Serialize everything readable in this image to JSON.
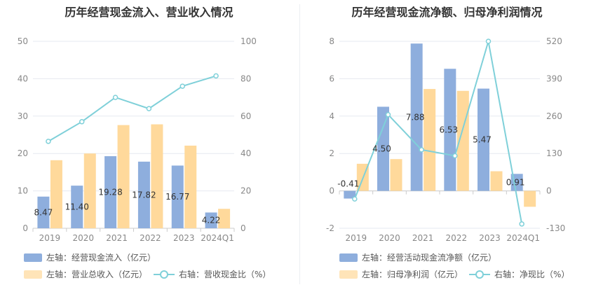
{
  "colors": {
    "bar1": "#8eaedd",
    "bar2": "#ffd99b",
    "line": "#7fd0d9",
    "grid": "#e6e9f0",
    "axis": "#cccccc"
  },
  "left": {
    "title": "历年经营现金流入、营业收入情况",
    "legend": {
      "bar1": "左轴：经营现金流入（亿元）",
      "bar2": "左轴：营业总收入（亿元）",
      "line": "右轴：营收现金比（%）"
    }
  },
  "right": {
    "title": "历年经营现金流净额、归母净利润情况",
    "legend": {
      "bar1": "左轴：经营活动现金流净额（亿元）",
      "bar2": "左轴：归母净利润（亿元）",
      "line": "右轴：净现比（%）"
    }
  },
  "chart_data": [
    {
      "type": "bar",
      "title": "历年经营现金流入、营业收入情况",
      "categories": [
        "2019",
        "2020",
        "2021",
        "2022",
        "2023",
        "2024Q1"
      ],
      "ylim": [
        0,
        50
      ],
      "y_ticks": [
        "0",
        "10",
        "20",
        "30",
        "40",
        "50"
      ],
      "y2lim": [
        0,
        100
      ],
      "y2_ticks": [
        "0",
        "20",
        "40",
        "60",
        "80",
        "100"
      ],
      "series": [
        {
          "name": "左轴：经营现金流入（亿元）",
          "kind": "bar",
          "axis": "left",
          "values": [
            8.47,
            11.4,
            19.28,
            17.82,
            16.77,
            4.22
          ],
          "labels": [
            "8.47",
            "11.40",
            "19.28",
            "17.82",
            "16.77",
            "4.22"
          ]
        },
        {
          "name": "左轴：营业总收入（亿元）",
          "kind": "bar",
          "axis": "left",
          "values": [
            18.2,
            20.0,
            27.6,
            27.8,
            22.1,
            5.2
          ]
        },
        {
          "name": "右轴：营收现金比（%）",
          "kind": "line",
          "axis": "right",
          "values": [
            46.5,
            57.0,
            70.0,
            64.0,
            76.0,
            81.5
          ]
        }
      ]
    },
    {
      "type": "bar",
      "title": "历年经营现金流净额、归母净利润情况",
      "categories": [
        "2019",
        "2020",
        "2021",
        "2022",
        "2023",
        "2024Q1"
      ],
      "ylim": [
        -2,
        8
      ],
      "y_ticks": [
        "-2",
        "0",
        "2",
        "4",
        "6",
        "8"
      ],
      "y2lim": [
        -130,
        520
      ],
      "y2_ticks": [
        "-130",
        "0",
        "130",
        "260",
        "390",
        "520"
      ],
      "series": [
        {
          "name": "左轴：经营活动现金流净额（亿元）",
          "kind": "bar",
          "axis": "left",
          "values": [
            -0.41,
            4.5,
            7.88,
            6.53,
            5.47,
            0.91
          ],
          "labels": [
            "-0.41",
            "4.50",
            "7.88",
            "6.53",
            "5.47",
            "0.91"
          ]
        },
        {
          "name": "左轴：归母净利润（亿元）",
          "kind": "bar",
          "axis": "left",
          "values": [
            1.45,
            1.7,
            5.45,
            5.35,
            1.05,
            -0.85
          ]
        },
        {
          "name": "右轴：净现比（%）",
          "kind": "line",
          "axis": "right",
          "values": [
            -28,
            265,
            143,
            122,
            520,
            -115
          ]
        }
      ]
    }
  ]
}
